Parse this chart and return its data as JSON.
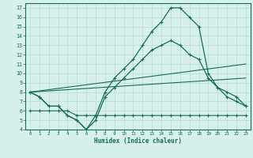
{
  "xlabel": "Humidex (Indice chaleur)",
  "background_color": "#d6f0ea",
  "grid_color": "#b8ddd6",
  "line_color": "#1a6b5a",
  "xlim": [
    -0.5,
    23.5
  ],
  "ylim": [
    4,
    17.5
  ],
  "yticks": [
    4,
    5,
    6,
    7,
    8,
    9,
    10,
    11,
    12,
    13,
    14,
    15,
    16,
    17
  ],
  "xticks": [
    0,
    1,
    2,
    3,
    4,
    5,
    6,
    7,
    8,
    9,
    10,
    11,
    12,
    13,
    14,
    15,
    16,
    17,
    18,
    19,
    20,
    21,
    22,
    23
  ],
  "line1_x": [
    0,
    1,
    2,
    3,
    4,
    5,
    6,
    7,
    8,
    9,
    10,
    11,
    12,
    13,
    14,
    15,
    16,
    17,
    18,
    19,
    20,
    21,
    22,
    23
  ],
  "line1_y": [
    8.0,
    7.5,
    6.5,
    6.5,
    5.5,
    5.0,
    4.0,
    5.5,
    8.0,
    9.5,
    10.5,
    11.5,
    13.0,
    14.5,
    15.5,
    17.0,
    17.0,
    16.0,
    15.0,
    10.0,
    8.5,
    7.5,
    7.0,
    6.5
  ],
  "line2_x": [
    0,
    1,
    2,
    3,
    4,
    5,
    6,
    7,
    8,
    9,
    10,
    11,
    12,
    13,
    14,
    15,
    16,
    17,
    18,
    19,
    20,
    21,
    22,
    23
  ],
  "line2_y": [
    8.0,
    7.5,
    6.5,
    6.5,
    5.5,
    5.0,
    4.0,
    5.0,
    7.5,
    8.5,
    9.5,
    10.5,
    11.5,
    12.5,
    13.0,
    13.5,
    13.0,
    12.0,
    11.5,
    9.5,
    8.5,
    8.0,
    7.5,
    6.5
  ],
  "line3_x": [
    0,
    23
  ],
  "line3_y": [
    8.0,
    11.0
  ],
  "line4_x": [
    0,
    23
  ],
  "line4_y": [
    8.0,
    9.5
  ],
  "line5_x": [
    0,
    1,
    2,
    3,
    4,
    5,
    6,
    7,
    8,
    9,
    10,
    11,
    12,
    13,
    14,
    15,
    16,
    17,
    18,
    19,
    20,
    21,
    22,
    23
  ],
  "line5_y": [
    6.0,
    6.0,
    6.0,
    6.0,
    6.0,
    5.5,
    5.5,
    5.5,
    5.5,
    5.5,
    5.5,
    5.5,
    5.5,
    5.5,
    5.5,
    5.5,
    5.5,
    5.5,
    5.5,
    5.5,
    5.5,
    5.5,
    5.5,
    5.5
  ]
}
